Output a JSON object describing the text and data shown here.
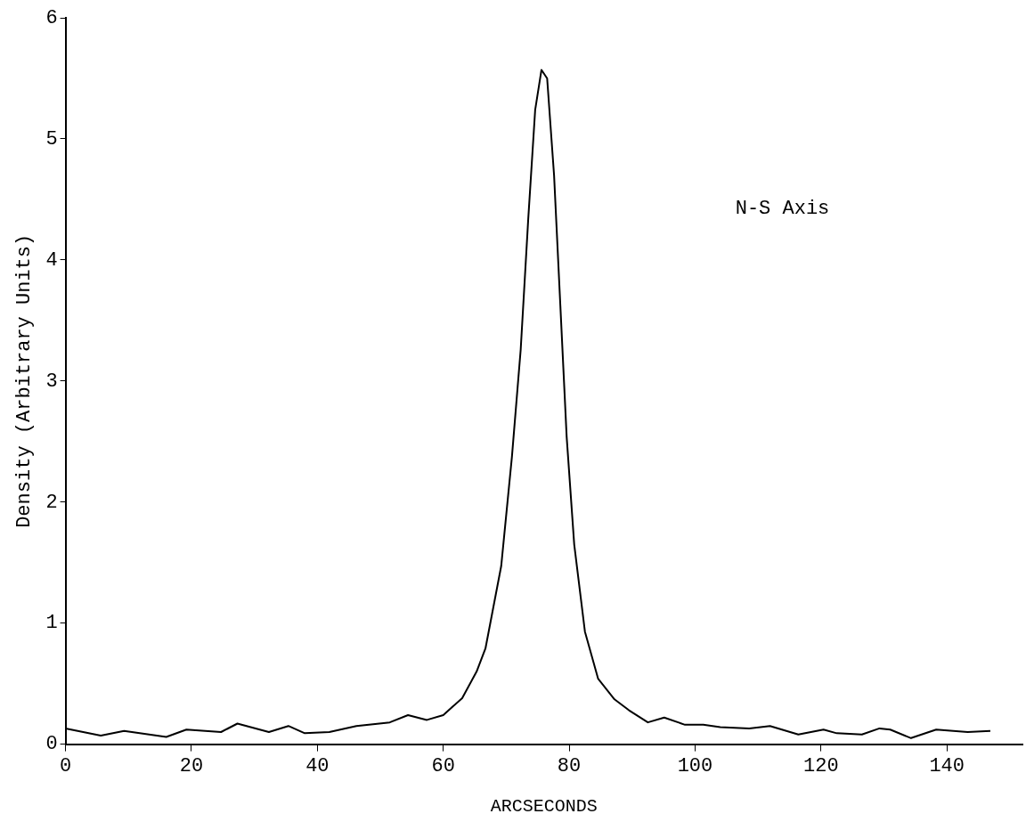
{
  "chart_data": {
    "type": "line",
    "xlabel": "ARCSECONDS",
    "ylabel": "Density (Arbitrary Units)",
    "annotations": [
      "N-S Axis"
    ],
    "x": [
      0,
      5.6,
      9.3,
      16,
      19.2,
      24.7,
      27.3,
      32.3,
      35.4,
      38,
      41.9,
      46.2,
      51.5,
      54.4,
      57.4,
      60,
      63,
      65.3,
      66.7,
      69.2,
      70.9,
      72.3,
      73.5,
      74.6,
      75.6,
      76.5,
      77.6,
      78.6,
      79.6,
      80.8,
      82.5,
      84.6,
      87.2,
      89.5,
      92.5,
      95.1,
      98.4,
      101.3,
      104,
      108.6,
      111.9,
      116.4,
      120.4,
      122.5,
      126.5,
      129.3,
      131,
      134.3,
      138.3,
      143.3,
      146.9
    ],
    "series": [
      {
        "color": "#000000",
        "values": [
          0.13,
          0.07,
          0.11,
          0.06,
          0.12,
          0.1,
          0.17,
          0.1,
          0.15,
          0.09,
          0.1,
          0.15,
          0.18,
          0.24,
          0.2,
          0.24,
          0.38,
          0.6,
          0.79,
          1.47,
          2.37,
          3.26,
          4.34,
          5.24,
          5.57,
          5.5,
          4.7,
          3.62,
          2.54,
          1.65,
          0.93,
          0.54,
          0.37,
          0.28,
          0.18,
          0.22,
          0.16,
          0.16,
          0.14,
          0.13,
          0.15,
          0.08,
          0.12,
          0.09,
          0.08,
          0.13,
          0.12,
          0.05,
          0.12,
          0.1,
          0.11
        ]
      }
    ],
    "xlim": [
      0,
      152
    ],
    "xticks": [
      0,
      20,
      40,
      60,
      80,
      100,
      120,
      140
    ],
    "ylim": [
      0,
      6
    ],
    "yticks": [
      0,
      1,
      2,
      3,
      4,
      5,
      6
    ],
    "grid": false,
    "legend": false,
    "marker": "none",
    "line_style": "solid"
  }
}
